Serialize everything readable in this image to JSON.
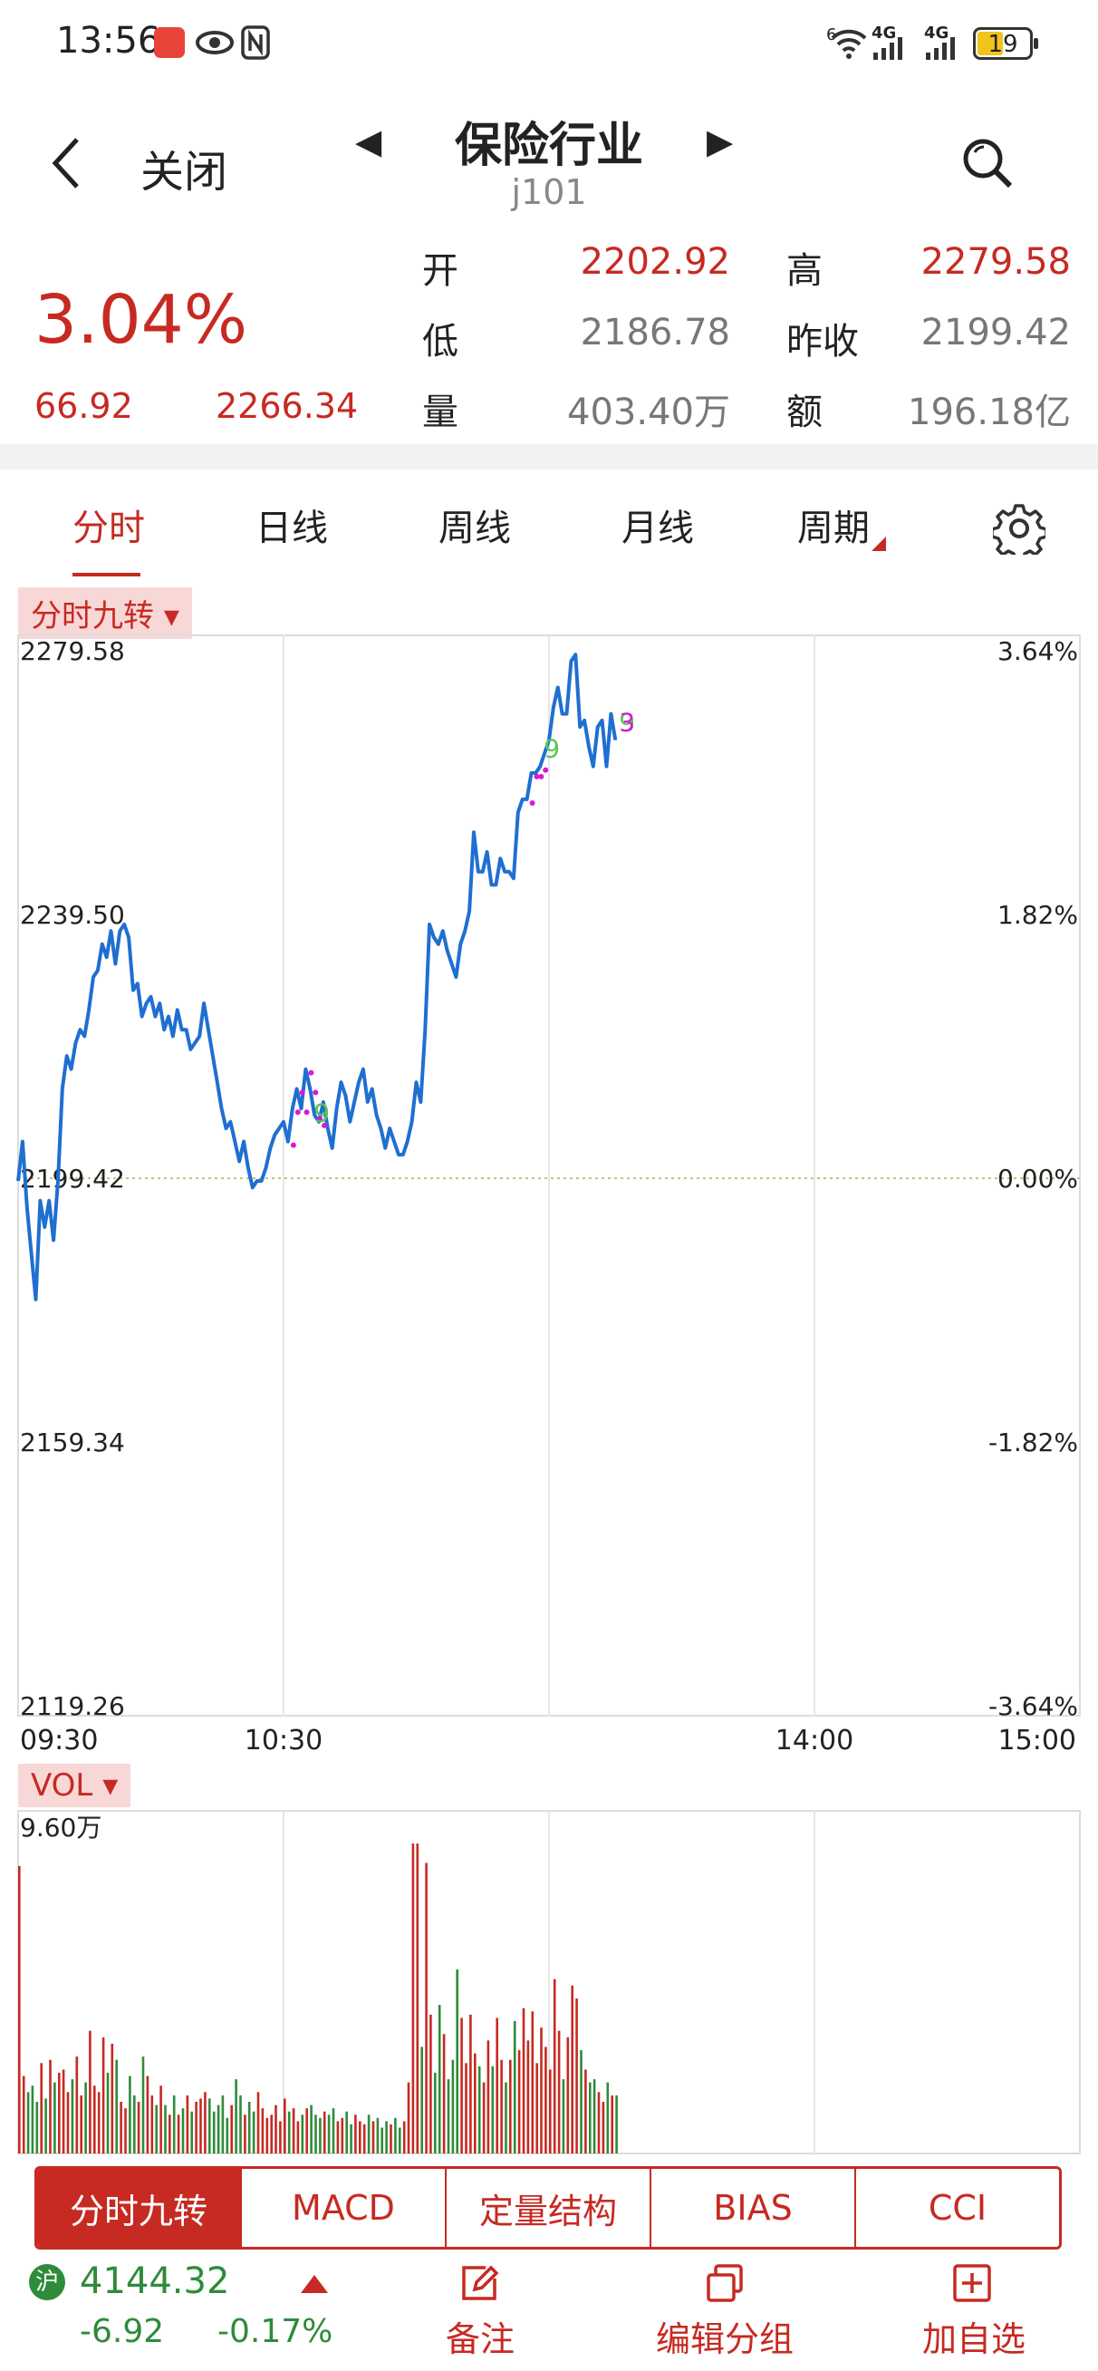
{
  "status_bar": {
    "time": "13:56",
    "battery": "19",
    "net1": "4G",
    "net2": "4G",
    "wifi_tag": "6"
  },
  "header": {
    "close_label": "关闭",
    "title": "保险行业",
    "code": "j101"
  },
  "quote": {
    "change_percent": "3.04%",
    "change_value": "66.92",
    "current": "2266.34",
    "open_label": "开",
    "open": "2202.92",
    "high_label": "高",
    "high": "2279.58",
    "low_label": "低",
    "low": "2186.78",
    "prev_close_label": "昨收",
    "prev_close": "2199.42",
    "volume_label": "量",
    "volume": "403.40万",
    "amount_label": "额",
    "amount": "196.18亿"
  },
  "tabs": [
    "分时",
    "日线",
    "周线",
    "月线",
    "周期"
  ],
  "indicator_pill": "分时九转",
  "vol_pill": "VOL",
  "colors": {
    "up": "#c62a22",
    "down": "#2e8b3a",
    "line": "#1f6fd1",
    "signal": "#d61ad6",
    "nine": "#5cc552"
  },
  "chart_data": {
    "type": "line",
    "y_left_ticks": [
      "2279.58",
      "2239.50",
      "2199.42",
      "2159.34",
      "2119.26"
    ],
    "y_right_ticks": [
      "3.64%",
      "1.82%",
      "0.00%",
      "-1.82%",
      "-3.64%"
    ],
    "x_ticks": [
      "09:30",
      "10:30",
      "14:00",
      "15:00"
    ],
    "ylim": [
      2119.26,
      2279.58
    ],
    "prev_close": 2199.42,
    "price_series": [
      2199,
      2205,
      2195,
      2188,
      2181,
      2196,
      2192,
      2196,
      2190,
      2199,
      2213,
      2218,
      2216,
      2220,
      2222,
      2221,
      2225,
      2230,
      2231,
      2235,
      2233,
      2237,
      2232,
      2237,
      2238,
      2236,
      2228,
      2229,
      2224,
      2226,
      2227,
      2224,
      2226,
      2222,
      2224,
      2221,
      2225,
      2222,
      2222,
      2219,
      2220,
      2221,
      2226,
      2222,
      2218,
      2214,
      2210,
      2207,
      2208,
      2205,
      2202,
      2205,
      2201,
      2198,
      2199,
      2199,
      2201,
      2204,
      2206,
      2207,
      2208,
      2205,
      2210,
      2213,
      2210,
      2216,
      2213,
      2209,
      2208,
      2211,
      2207,
      2204,
      2210,
      2214,
      2212,
      2208,
      2211,
      2214,
      2216,
      2211,
      2213,
      2209,
      2207,
      2204,
      2207,
      2205,
      2203,
      2203,
      2205,
      2208,
      2214,
      2211,
      2222,
      2238,
      2236,
      2235,
      2237,
      2234,
      2232,
      2230,
      2235,
      2237,
      2240,
      2252,
      2246,
      2246,
      2249,
      2244,
      2244,
      2248,
      2246,
      2246,
      2245,
      2255,
      2257,
      2257,
      2261,
      2261,
      2262,
      2264,
      2266,
      2271,
      2274,
      2270,
      2270,
      2278,
      2279,
      2268,
      2269,
      2265,
      2262,
      2268,
      2269,
      2262,
      2270,
      2266
    ],
    "nine_marks": [
      {
        "label": "9"
      },
      {
        "label": "9"
      },
      {
        "label": "9"
      },
      {
        "label": "3"
      }
    ],
    "vol_max_label": "9.60万",
    "volumes": [
      8.9,
      2.4,
      1.9,
      2.1,
      1.6,
      2.8,
      1.7,
      2.9,
      2.2,
      2.5,
      2.6,
      1.9,
      2.3,
      3.0,
      1.8,
      2.2,
      3.8,
      2.1,
      1.9,
      3.6,
      2.5,
      3.4,
      2.9,
      1.6,
      1.4,
      2.4,
      1.8,
      1.6,
      3.0,
      2.4,
      1.8,
      1.5,
      2.1,
      1.5,
      1.2,
      1.8,
      1.2,
      1.4,
      1.8,
      1.3,
      1.6,
      1.7,
      1.9,
      1.7,
      1.3,
      1.5,
      1.8,
      1.1,
      1.5,
      2.3,
      1.8,
      1.2,
      1.6,
      1.3,
      1.9,
      1.4,
      1.1,
      1.2,
      1.5,
      1.0,
      1.7,
      1.3,
      1.4,
      1.0,
      1.2,
      1.4,
      1.5,
      1.2,
      1.1,
      1.3,
      1.2,
      1.4,
      1.0,
      1.1,
      1.3,
      0.9,
      1.2,
      1.0,
      0.9,
      1.2,
      1.0,
      1.1,
      0.8,
      1.0,
      0.9,
      1.1,
      0.8,
      1.0,
      2.2,
      9.6,
      9.6,
      3.3,
      9.0,
      4.3,
      2.5,
      4.6,
      3.7,
      2.3,
      2.9,
      5.7,
      4.2,
      2.8,
      4.3,
      3.1,
      2.7,
      2.2,
      3.5,
      2.7,
      4.2,
      2.9,
      2.2,
      2.9,
      4.1,
      3.2,
      4.5,
      3.5,
      4.4,
      2.8,
      3.9,
      3.3,
      2.6,
      5.4,
      3.8,
      2.3,
      3.6,
      5.2,
      4.8,
      3.2,
      2.6,
      2.2,
      2.3,
      1.9,
      1.6,
      2.2,
      1.8,
      1.8
    ]
  },
  "indicator_tabs": [
    "分时九转",
    "MACD",
    "定量结构",
    "BIAS",
    "CCI"
  ],
  "bottom": {
    "index_badge": "沪",
    "index_value": "4144.32",
    "index_change": "-6.92",
    "index_change_pct": "-0.17%",
    "note_label": "备注",
    "group_label": "编辑分组",
    "add_label": "加自选"
  }
}
